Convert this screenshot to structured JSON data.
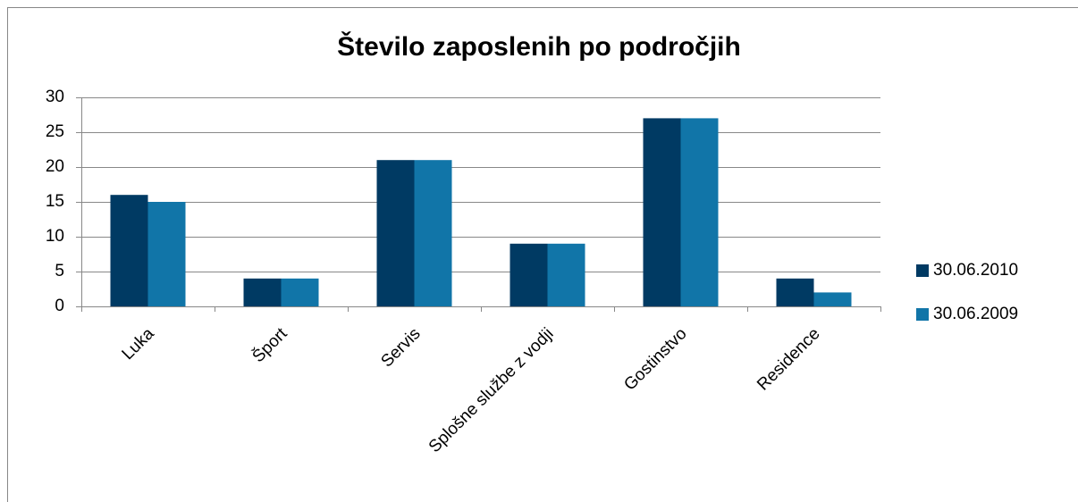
{
  "chart_data": {
    "type": "bar",
    "title": "Število zaposlenih po področjih",
    "categories": [
      "Luka",
      "Šport",
      "Servis",
      "Splošne službe z vodji",
      "Gostinstvo",
      "Residence"
    ],
    "series": [
      {
        "name": "30.06.2010",
        "color": "#003a63",
        "values": [
          16,
          4,
          21,
          9,
          27,
          4
        ]
      },
      {
        "name": "30.06.2009",
        "color": "#1175a8",
        "values": [
          15,
          4,
          21,
          9,
          27,
          2
        ]
      }
    ],
    "ylim": [
      0,
      30
    ],
    "yticks": [
      0,
      5,
      10,
      15,
      20,
      25,
      30
    ],
    "grid": true,
    "legend": "right"
  }
}
